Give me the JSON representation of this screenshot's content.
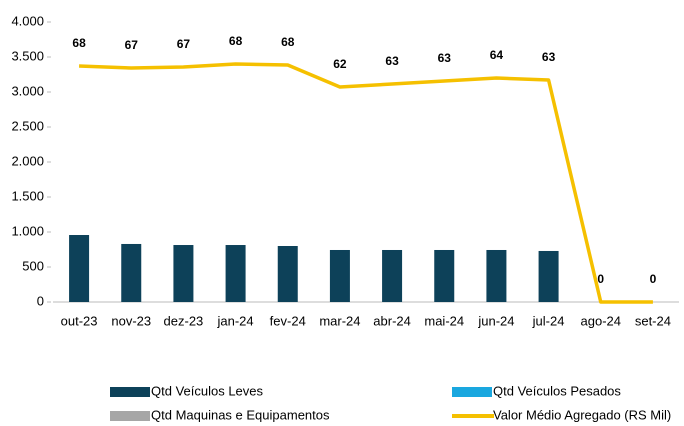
{
  "chart_data": {
    "type": "bar-line",
    "categories": [
      "out-23",
      "nov-23",
      "dez-23",
      "jan-24",
      "fev-24",
      "mar-24",
      "abr-24",
      "mai-24",
      "jun-24",
      "jul-24",
      "ago-24",
      "set-24"
    ],
    "series": [
      {
        "name": "Qtd Veículos Leves",
        "color": "#0d4159",
        "kind": "bar",
        "values": [
          957,
          829,
          814,
          814,
          800,
          743,
          743,
          743,
          743,
          729,
          0,
          0
        ]
      },
      {
        "name": "Qtd Veículos Pesados",
        "color": "#1aa7df",
        "kind": "bar",
        "values": [
          null,
          null,
          null,
          null,
          null,
          null,
          null,
          null,
          null,
          null,
          null,
          null
        ]
      },
      {
        "name": "Qtd Maquinas e Equipamentos",
        "color": "#a6a6a6",
        "kind": "bar",
        "values": [
          null,
          null,
          null,
          null,
          null,
          null,
          null,
          null,
          null,
          null,
          null,
          null
        ]
      },
      {
        "name": "Valor Médio Agregado (RS Mil)",
        "color": "#f5c000",
        "kind": "line",
        "values": [
          3371,
          3343,
          3357,
          3400,
          3386,
          3071,
          3114,
          3157,
          3200,
          3171,
          0,
          0
        ]
      }
    ],
    "point_labels": [
      68,
      67,
      67,
      68,
      68,
      62,
      63,
      63,
      64,
      63,
      0,
      0
    ],
    "ylim": [
      0,
      4000
    ],
    "yticks": [
      0,
      500,
      {
        "value": 1000,
        "label": "1.000"
      },
      {
        "value": 1500,
        "label": "1.500"
      },
      {
        "value": 2000,
        "label": "2.000"
      },
      {
        "value": 2500,
        "label": "2.500"
      },
      {
        "value": 3000,
        "label": "3.000"
      },
      {
        "value": 3500,
        "label": "3.500"
      },
      {
        "value": 4000,
        "label": "4.000"
      }
    ],
    "grid": false
  }
}
